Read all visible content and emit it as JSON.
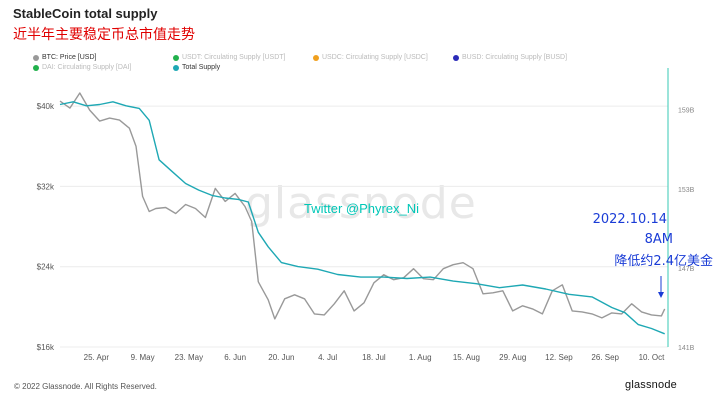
{
  "header": {
    "title": "StableCoin total supply",
    "subtitle": "近半年主要稳定币总市值走势"
  },
  "legend": [
    {
      "label": "BTC: Price [USD]",
      "color": "#999999",
      "active": true
    },
    {
      "label": "USDT: Circulating Supply [USDT]",
      "color": "#22b14c",
      "active": false
    },
    {
      "label": "USDC: Circulating Supply [USDC]",
      "color": "#f0a01e",
      "active": false
    },
    {
      "label": "BUSD: Circulating Supply [BUSD]",
      "color": "#2b2bb8",
      "active": false
    },
    {
      "label": "DAI: Circulating Supply [DAI]",
      "color": "#22b14c",
      "active": false
    },
    {
      "label": "Total Supply",
      "color": "#1ea8b4",
      "active": true
    }
  ],
  "watermark": "glassnode",
  "twitter_handle": "Twitter @Phyrex_Ni",
  "annotation": {
    "date": "2022.10.14",
    "time": "8AM",
    "note": "降低约2.4亿美金"
  },
  "footer": {
    "copyright": "© 2022 Glassnode. All Rights Reserved.",
    "brand": "glassnode"
  },
  "colors": {
    "btc": "#999999",
    "total_supply": "#1ea8b4",
    "annotation": "#1a3cd6",
    "subtitle": "#e00000"
  },
  "chart_data": {
    "type": "line",
    "title": "StableCoin total supply",
    "x_ticks": [
      "25. Apr",
      "9. May",
      "23. May",
      "6. Jun",
      "20. Jun",
      "4. Jul",
      "18. Jul",
      "1. Aug",
      "15. Aug",
      "29. Aug",
      "12. Sep",
      "26. Sep",
      "10. Oct"
    ],
    "xlim": [
      "2022-04-14",
      "2022-10-15"
    ],
    "y_left": {
      "label": "BTC: Price [USD]",
      "ticks": [
        "$16k",
        "$24k",
        "$32k",
        "$40k"
      ],
      "ylim": [
        16000,
        42000
      ]
    },
    "y_right": {
      "label": "Total Supply",
      "ticks": [
        "141B",
        "147B",
        "153B",
        "159B"
      ],
      "ylim": [
        141,
        160.8
      ]
    },
    "grid": "horizontal",
    "series": [
      {
        "name": "BTC: Price [USD]",
        "axis": "left",
        "x": [
          "2022-04-14",
          "2022-04-17",
          "2022-04-20",
          "2022-04-23",
          "2022-04-26",
          "2022-04-29",
          "2022-05-02",
          "2022-05-05",
          "2022-05-07",
          "2022-05-09",
          "2022-05-11",
          "2022-05-13",
          "2022-05-16",
          "2022-05-19",
          "2022-05-22",
          "2022-05-25",
          "2022-05-28",
          "2022-05-31",
          "2022-06-03",
          "2022-06-06",
          "2022-06-09",
          "2022-06-11",
          "2022-06-13",
          "2022-06-16",
          "2022-06-18",
          "2022-06-21",
          "2022-06-24",
          "2022-06-27",
          "2022-06-30",
          "2022-07-03",
          "2022-07-06",
          "2022-07-09",
          "2022-07-12",
          "2022-07-15",
          "2022-07-18",
          "2022-07-21",
          "2022-07-24",
          "2022-07-27",
          "2022-07-30",
          "2022-08-02",
          "2022-08-05",
          "2022-08-08",
          "2022-08-11",
          "2022-08-14",
          "2022-08-17",
          "2022-08-20",
          "2022-08-23",
          "2022-08-26",
          "2022-08-29",
          "2022-09-01",
          "2022-09-04",
          "2022-09-07",
          "2022-09-10",
          "2022-09-13",
          "2022-09-16",
          "2022-09-19",
          "2022-09-22",
          "2022-09-25",
          "2022-09-28",
          "2022-10-01",
          "2022-10-04",
          "2022-10-07",
          "2022-10-10",
          "2022-10-13",
          "2022-10-14"
        ],
        "values": [
          40500,
          39800,
          41300,
          39600,
          38500,
          38800,
          38600,
          37800,
          36000,
          31000,
          29500,
          29800,
          29900,
          29300,
          30200,
          29800,
          28900,
          31800,
          30500,
          31300,
          30000,
          28500,
          22500,
          20700,
          18800,
          20800,
          21200,
          20800,
          19300,
          19200,
          20300,
          21600,
          19600,
          20400,
          22400,
          23200,
          22700,
          22900,
          23800,
          22800,
          22700,
          23800,
          24200,
          24400,
          23800,
          21300,
          21400,
          21600,
          19600,
          20100,
          19800,
          19300,
          21600,
          22200,
          19600,
          19500,
          19300,
          18900,
          19400,
          19300,
          20300,
          19500,
          19200,
          19100,
          19800
        ]
      },
      {
        "name": "Total Supply",
        "axis": "right",
        "x": [
          "2022-04-14",
          "2022-04-18",
          "2022-04-22",
          "2022-04-26",
          "2022-04-30",
          "2022-05-04",
          "2022-05-08",
          "2022-05-11",
          "2022-05-14",
          "2022-05-18",
          "2022-05-22",
          "2022-05-26",
          "2022-05-30",
          "2022-06-03",
          "2022-06-07",
          "2022-06-10",
          "2022-06-13",
          "2022-06-16",
          "2022-06-20",
          "2022-06-25",
          "2022-07-01",
          "2022-07-07",
          "2022-07-14",
          "2022-07-21",
          "2022-07-28",
          "2022-08-04",
          "2022-08-11",
          "2022-08-18",
          "2022-08-25",
          "2022-09-01",
          "2022-09-08",
          "2022-09-15",
          "2022-09-22",
          "2022-09-28",
          "2022-10-02",
          "2022-10-06",
          "2022-10-10",
          "2022-10-14"
        ],
        "values": [
          159.4,
          159.6,
          159.3,
          159.4,
          159.6,
          159.3,
          159.1,
          158.2,
          155.2,
          154.3,
          153.4,
          152.9,
          152.5,
          152.3,
          152.2,
          152.0,
          149.7,
          148.6,
          147.4,
          147.1,
          146.9,
          146.5,
          146.3,
          146.3,
          146.2,
          146.3,
          146.0,
          145.8,
          145.5,
          145.7,
          145.4,
          145.0,
          144.8,
          144.0,
          143.6,
          142.7,
          142.4,
          142.0
        ]
      }
    ]
  }
}
